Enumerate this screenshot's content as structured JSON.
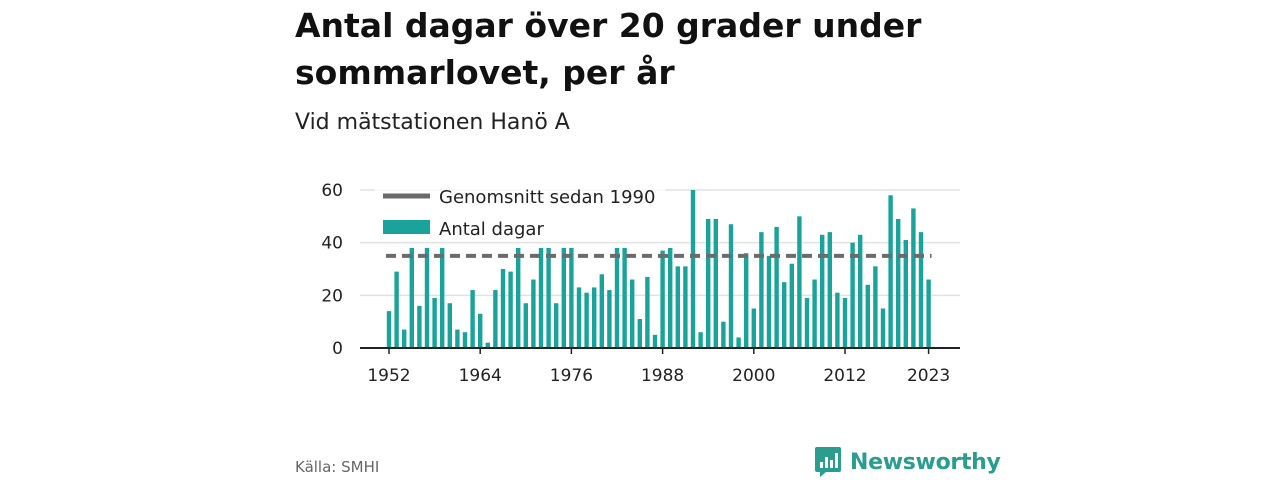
{
  "title": "Antal dagar över 20 grader under sommarlovet, per år",
  "subtitle": "Vid mätstationen Hanö A",
  "source": "Källa: SMHI",
  "brand": "Newsworthy",
  "colors": {
    "bar": "#1aa39a",
    "average": "#6b6b6b",
    "brand": "#2a9d8f",
    "grid": "#e2e2e2"
  },
  "chart_data": {
    "type": "bar",
    "x": [
      1952,
      1953,
      1954,
      1955,
      1956,
      1957,
      1958,
      1959,
      1960,
      1961,
      1962,
      1963,
      1964,
      1965,
      1966,
      1967,
      1968,
      1969,
      1970,
      1971,
      1972,
      1973,
      1974,
      1975,
      1976,
      1977,
      1978,
      1979,
      1980,
      1981,
      1982,
      1983,
      1984,
      1985,
      1986,
      1987,
      1988,
      1989,
      1990,
      1991,
      1992,
      1993,
      1994,
      1995,
      1996,
      1997,
      1998,
      1999,
      2000,
      2001,
      2002,
      2003,
      2004,
      2005,
      2006,
      2007,
      2008,
      2009,
      2010,
      2011,
      2012,
      2013,
      2014,
      2015,
      2016,
      2017,
      2018,
      2019,
      2020,
      2021,
      2022,
      2023
    ],
    "series": [
      {
        "name": "Antal dagar",
        "values": [
          14,
          29,
          7,
          38,
          16,
          38,
          19,
          38,
          17,
          7,
          6,
          22,
          13,
          2,
          22,
          30,
          29,
          38,
          17,
          26,
          38,
          38,
          17,
          38,
          38,
          23,
          21,
          23,
          28,
          22,
          38,
          38,
          26,
          11,
          27,
          5,
          37,
          38,
          31,
          31,
          60,
          6,
          49,
          49,
          10,
          47,
          4,
          36,
          15,
          44,
          35,
          46,
          25,
          32,
          50,
          19,
          26,
          43,
          44,
          21,
          19,
          40,
          43,
          24,
          31,
          15,
          58,
          49,
          41,
          53,
          44,
          26
        ]
      },
      {
        "name": "Genomsnitt sedan 1990",
        "value": 35
      }
    ],
    "xticks": [
      "1952",
      "1964",
      "1976",
      "1988",
      "2000",
      "2012",
      "2023"
    ],
    "yticks": [
      "0",
      "20",
      "40",
      "60"
    ],
    "ylim": [
      0,
      60
    ],
    "legend": [
      {
        "label": "Genomsnitt sedan 1990",
        "kind": "line"
      },
      {
        "label": "Antal dagar",
        "kind": "bar"
      }
    ],
    "legend_position": "top-left",
    "grid": true
  }
}
